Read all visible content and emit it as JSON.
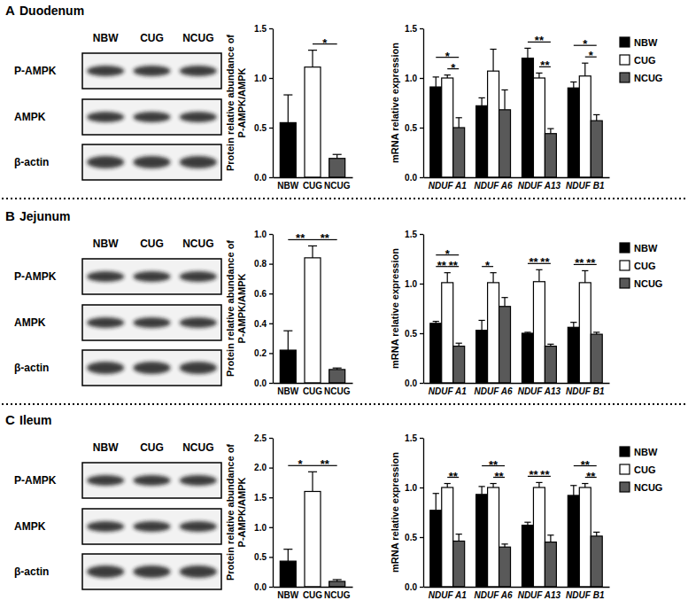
{
  "panels": [
    {
      "label": "A",
      "title": "Duodenum",
      "blot": {
        "lanes": [
          "NBW",
          "CUG",
          "NCUG"
        ],
        "rows": [
          "P-AMPK",
          "AMPK",
          "β-actin"
        ]
      }
    },
    {
      "label": "B",
      "title": "Jejunum",
      "blot": {
        "lanes": [
          "NBW",
          "CUG",
          "NCUG"
        ],
        "rows": [
          "P-AMPK",
          "AMPK",
          "β-actin"
        ]
      }
    },
    {
      "label": "C",
      "title": "Ileum",
      "blot": {
        "lanes": [
          "NBW",
          "CUG",
          "NCUG"
        ],
        "rows": [
          "P-AMPK",
          "AMPK",
          "β-actin"
        ]
      }
    }
  ],
  "chart_data": [
    {
      "type": "bar",
      "y_label": [
        "Protein relative abundance of",
        "P-AMPK/AMPK"
      ],
      "categories": [
        "NBW",
        "CUG",
        "NCUG"
      ],
      "values": [
        0.55,
        1.11,
        0.19
      ],
      "errors": [
        0.28,
        0.17,
        0.04
      ],
      "colors": [
        "#000000",
        "#ffffff",
        "#595959"
      ],
      "ylim": [
        0,
        1.5
      ],
      "yticks": [
        {
          "value": 0,
          "label": "0.0"
        },
        0.5,
        {
          "value": 1,
          "label": "1.0"
        },
        1.5
      ],
      "annotations": [
        {
          "from": 1,
          "to": 2,
          "label": "*"
        }
      ]
    },
    {
      "type": "bar",
      "y_label": "mRNA relative expression",
      "categories": [
        "NDUF A1",
        "NDUF A6",
        "NDUF A13",
        "NDUF B1"
      ],
      "series": [
        {
          "name": "NBW",
          "color": "#000000",
          "values": [
            0.91,
            0.72,
            1.2,
            0.9
          ],
          "errors": [
            0.1,
            0.08,
            0.1,
            0.06
          ]
        },
        {
          "name": "CUG",
          "color": "#ffffff",
          "values": [
            1.0,
            1.07,
            1.0,
            1.02
          ],
          "errors": [
            0.03,
            0.22,
            0.05,
            0.13
          ]
        },
        {
          "name": "NCUG",
          "color": "#595959",
          "values": [
            0.5,
            0.68,
            0.44,
            0.57
          ],
          "errors": [
            0.1,
            0.2,
            0.05,
            0.06
          ]
        }
      ],
      "ylim": [
        0,
        1.5
      ],
      "yticks": [
        {
          "value": 0,
          "label": "0.0"
        },
        0.5,
        {
          "value": 1,
          "label": "1.0"
        },
        1.5
      ],
      "legend": "right",
      "annotations": [
        {
          "category": 0,
          "from": 1,
          "to": 2,
          "label": "*"
        },
        {
          "category": 0,
          "from": 0,
          "to": 2,
          "label": "*"
        },
        {
          "category": 2,
          "from": 1,
          "to": 2,
          "label": "**"
        },
        {
          "category": 2,
          "from": 0,
          "to": 2,
          "label": "**"
        },
        {
          "category": 3,
          "from": 1,
          "to": 2,
          "label": "*"
        },
        {
          "category": 3,
          "from": 0,
          "to": 2,
          "label": "*"
        }
      ]
    },
    {
      "type": "bar",
      "y_label": [
        "Protein relative abundance of",
        "P-AMPK/AMPK"
      ],
      "categories": [
        "NBW",
        "CUG",
        "NCUG"
      ],
      "values": [
        0.22,
        0.84,
        0.09
      ],
      "errors": [
        0.13,
        0.08,
        0.01
      ],
      "colors": [
        "#000000",
        "#ffffff",
        "#595959"
      ],
      "ylim": [
        0,
        1
      ],
      "yticks": [
        {
          "value": 0,
          "label": "0.0"
        },
        0.2,
        0.4,
        0.6,
        0.8,
        {
          "value": 1,
          "label": "1.0"
        }
      ],
      "annotations": [
        {
          "from": 0,
          "to": 1,
          "label": "**"
        },
        {
          "from": 1,
          "to": 2,
          "label": "**"
        }
      ]
    },
    {
      "type": "bar",
      "y_label": "mRNA relative expression",
      "categories": [
        "NDUF A1",
        "NDUF A6",
        "NDUF A13",
        "NDUF B1"
      ],
      "series": [
        {
          "name": "NBW",
          "color": "#000000",
          "values": [
            0.6,
            0.53,
            0.5,
            0.56
          ],
          "errors": [
            0.02,
            0.1,
            0.01,
            0.05
          ]
        },
        {
          "name": "CUG",
          "color": "#ffffff",
          "values": [
            1.01,
            1.01,
            1.02,
            1.01
          ],
          "errors": [
            0.1,
            0.1,
            0.12,
            0.12
          ]
        },
        {
          "name": "NCUG",
          "color": "#595959",
          "values": [
            0.37,
            0.77,
            0.37,
            0.49
          ],
          "errors": [
            0.03,
            0.09,
            0.02,
            0.02
          ]
        }
      ],
      "ylim": [
        0,
        1.5
      ],
      "yticks": [
        {
          "value": 0,
          "label": "0.0"
        },
        0.5,
        {
          "value": 1,
          "label": "1.0"
        },
        1.5
      ],
      "legend": "right",
      "annotations": [
        {
          "category": 0,
          "from": 0,
          "to": 1,
          "label": "**"
        },
        {
          "category": 0,
          "from": 1,
          "to": 2,
          "label": "**"
        },
        {
          "category": 0,
          "from": 0,
          "to": 2,
          "label": "*"
        },
        {
          "category": 1,
          "from": 0,
          "to": 1,
          "label": "*"
        },
        {
          "category": 2,
          "from": 0,
          "to": 1,
          "label": "**"
        },
        {
          "category": 2,
          "from": 1,
          "to": 2,
          "label": "**"
        },
        {
          "category": 3,
          "from": 0,
          "to": 1,
          "label": "**"
        },
        {
          "category": 3,
          "from": 1,
          "to": 2,
          "label": "**"
        }
      ]
    },
    {
      "type": "bar",
      "y_label": [
        "Protein relative abundance of",
        "P-AMPK/AMPK"
      ],
      "categories": [
        "NBW",
        "CUG",
        "NCUG"
      ],
      "values": [
        0.43,
        1.6,
        0.09
      ],
      "errors": [
        0.2,
        0.33,
        0.03
      ],
      "colors": [
        "#000000",
        "#ffffff",
        "#595959"
      ],
      "ylim": [
        0,
        2.5
      ],
      "yticks": [
        {
          "value": 0,
          "label": "0.0"
        },
        0.5,
        {
          "value": 1,
          "label": "1.0"
        },
        1.5,
        {
          "value": 2,
          "label": "2.0"
        },
        2.5
      ],
      "annotations": [
        {
          "from": 0,
          "to": 1,
          "label": "*"
        },
        {
          "from": 1,
          "to": 2,
          "label": "**"
        }
      ]
    },
    {
      "type": "bar",
      "y_label": "mRNA relative expression",
      "categories": [
        "NDUF A1",
        "NDUF A6",
        "NDUF A13",
        "NDUF B1"
      ],
      "series": [
        {
          "name": "NBW",
          "color": "#000000",
          "values": [
            0.77,
            0.93,
            0.62,
            0.92
          ],
          "errors": [
            0.17,
            0.08,
            0.03,
            0.1
          ]
        },
        {
          "name": "CUG",
          "color": "#ffffff",
          "values": [
            1.0,
            1.0,
            1.0,
            1.0
          ],
          "errors": [
            0.04,
            0.04,
            0.05,
            0.04
          ]
        },
        {
          "name": "NCUG",
          "color": "#595959",
          "values": [
            0.46,
            0.4,
            0.45,
            0.51
          ],
          "errors": [
            0.07,
            0.03,
            0.07,
            0.04
          ]
        }
      ],
      "ylim": [
        0,
        1.5
      ],
      "yticks": [
        {
          "value": 0,
          "label": "0.0"
        },
        0.5,
        {
          "value": 1,
          "label": "1.0"
        },
        1.5
      ],
      "legend": "right",
      "annotations": [
        {
          "category": 0,
          "from": 1,
          "to": 2,
          "label": "**"
        },
        {
          "category": 1,
          "from": 1,
          "to": 2,
          "label": "**"
        },
        {
          "category": 1,
          "from": 0,
          "to": 2,
          "label": "**"
        },
        {
          "category": 2,
          "from": 0,
          "to": 1,
          "label": "**"
        },
        {
          "category": 2,
          "from": 1,
          "to": 2,
          "label": "**"
        },
        {
          "category": 3,
          "from": 1,
          "to": 2,
          "label": "**"
        },
        {
          "category": 3,
          "from": 0,
          "to": 2,
          "label": "**"
        }
      ]
    }
  ]
}
